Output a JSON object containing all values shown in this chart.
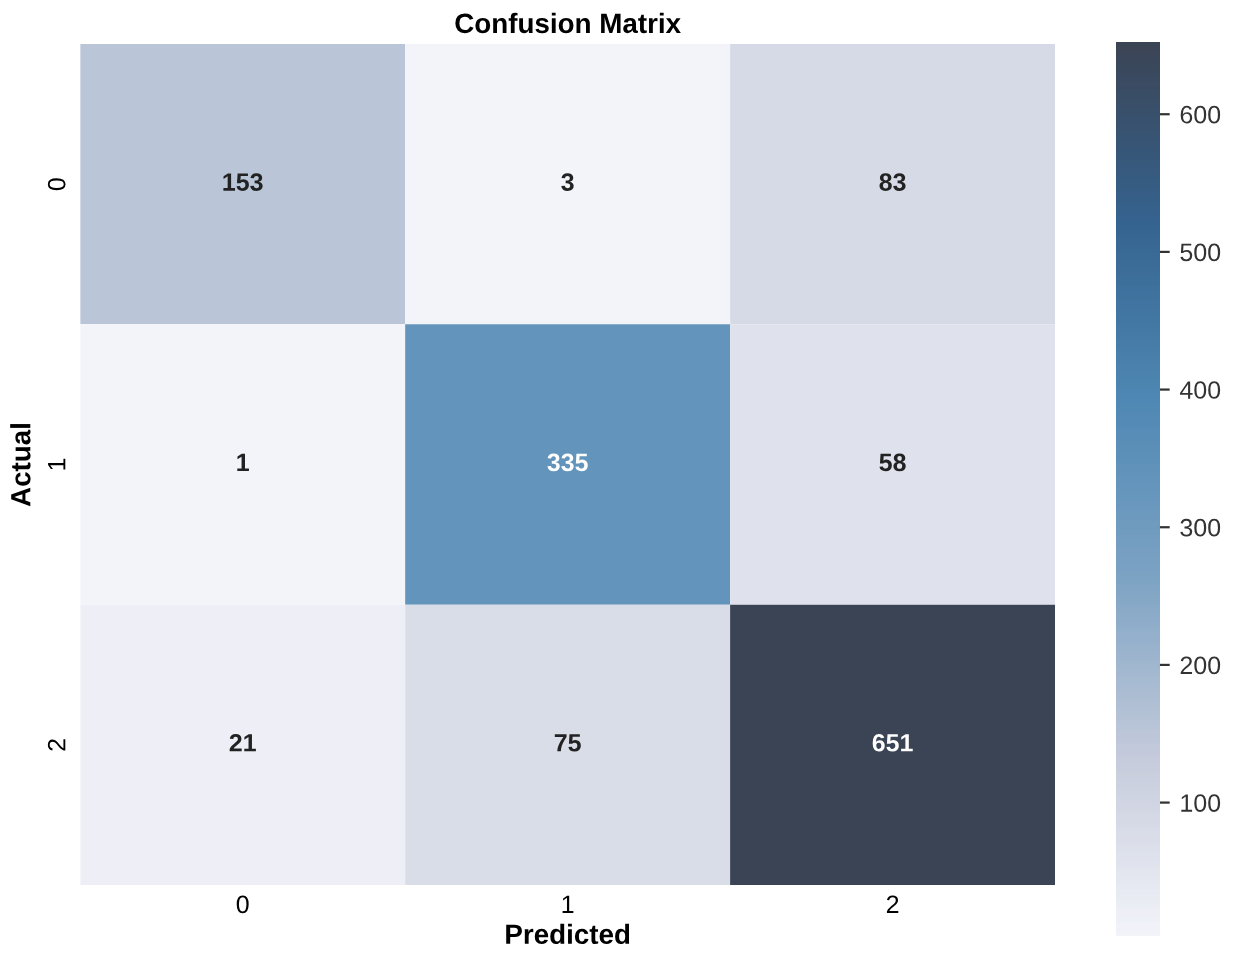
{
  "chart_data": {
    "type": "heatmap",
    "title": "Confusion Matrix",
    "xlabel": "Predicted",
    "ylabel": "Actual",
    "categories": [
      "0",
      "1",
      "2"
    ],
    "y_categories": [
      "0",
      "1",
      "2"
    ],
    "cells": [
      [
        153,
        3,
        83
      ],
      [
        1,
        335,
        58
      ],
      [
        21,
        75,
        651
      ]
    ],
    "clim": [
      1,
      651
    ],
    "cticks": [
      100,
      200,
      300,
      400,
      500,
      600
    ],
    "data_labels": true
  }
}
